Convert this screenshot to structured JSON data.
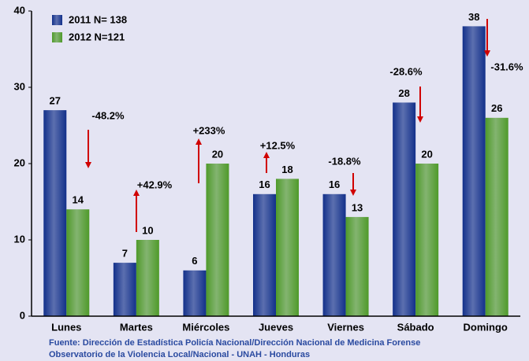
{
  "chart_data": {
    "type": "bar",
    "categories": [
      "Lunes",
      "Martes",
      "Miércoles",
      "Jueves",
      "Viernes",
      "Sábado",
      "Domingo"
    ],
    "series": [
      {
        "name": "2011 N= 138",
        "color": "#12308a",
        "values": [
          27,
          7,
          6,
          16,
          16,
          28,
          38
        ]
      },
      {
        "name": "2012 N=121",
        "color": "#4f9a2a",
        "values": [
          14,
          10,
          20,
          18,
          13,
          20,
          26
        ]
      }
    ],
    "ylim": [
      0,
      40
    ],
    "yticks": [
      0,
      10,
      20,
      30,
      40
    ],
    "grid": false,
    "legend": "top-left",
    "annotations": [
      {
        "text": "-48.2%",
        "direction": "down"
      },
      {
        "text": "+42.9%",
        "direction": "up"
      },
      {
        "text": "+233%",
        "direction": "up"
      },
      {
        "text": "+12.5%",
        "direction": "up"
      },
      {
        "text": "-18.8%",
        "direction": "down"
      },
      {
        "text": "-28.6%",
        "direction": "down"
      },
      {
        "text": "-31.6%",
        "direction": "down"
      }
    ],
    "source": [
      "Fuente: Dirección de Estadística Policía Nacional/Dirección Nacional de Medicina Forense",
      "Observatorio de la Violencia Local/Nacional - UNAH - Honduras"
    ]
  }
}
